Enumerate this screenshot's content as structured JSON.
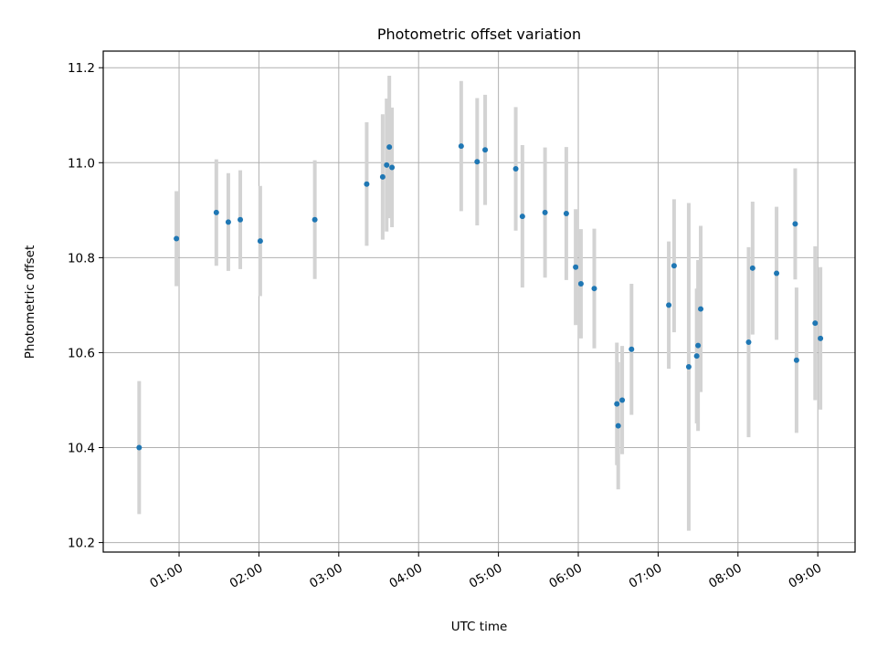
{
  "chart_data": {
    "type": "scatter",
    "title": "Photometric offset variation",
    "xlabel": "UTC time",
    "ylabel": "Photometric offset",
    "x_unit": "UTC time of day",
    "xlim": [
      "00:03",
      "09:28"
    ],
    "ylim": [
      10.18,
      11.235
    ],
    "grid": true,
    "error_bar_color": "#d3d3d3",
    "point_color": "#1f77b4",
    "x_ticks": [
      "01:00",
      "02:00",
      "03:00",
      "04:00",
      "05:00",
      "06:00",
      "07:00",
      "08:00",
      "09:00"
    ],
    "y_ticks": [
      "10.2",
      "10.4",
      "10.6",
      "10.8",
      "11.0",
      "11.2"
    ],
    "points": [
      {
        "x": "00:30",
        "y": 10.4,
        "yerr": 0.14
      },
      {
        "x": "00:58",
        "y": 10.84,
        "yerr": 0.1
      },
      {
        "x": "01:28",
        "y": 10.895,
        "yerr": 0.112
      },
      {
        "x": "01:37",
        "y": 10.875,
        "yerr": 0.103
      },
      {
        "x": "01:46",
        "y": 10.88,
        "yerr": 0.104
      },
      {
        "x": "02:01",
        "y": 10.835,
        "yerr": 0.116
      },
      {
        "x": "02:42",
        "y": 10.88,
        "yerr": 0.125
      },
      {
        "x": "03:21",
        "y": 10.955,
        "yerr": 0.13
      },
      {
        "x": "03:33",
        "y": 10.97,
        "yerr": 0.132
      },
      {
        "x": "03:36",
        "y": 10.995,
        "yerr": 0.14
      },
      {
        "x": "03:38",
        "y": 11.033,
        "yerr": 0.15
      },
      {
        "x": "03:40",
        "y": 10.99,
        "yerr": 0.126
      },
      {
        "x": "04:32",
        "y": 11.035,
        "yerr": 0.137
      },
      {
        "x": "04:44",
        "y": 11.002,
        "yerr": 0.134
      },
      {
        "x": "04:50",
        "y": 11.027,
        "yerr": 0.116
      },
      {
        "x": "05:13",
        "y": 10.987,
        "yerr": 0.13
      },
      {
        "x": "05:18",
        "y": 10.887,
        "yerr": 0.15
      },
      {
        "x": "05:35",
        "y": 10.895,
        "yerr": 0.137
      },
      {
        "x": "05:51",
        "y": 10.893,
        "yerr": 0.14
      },
      {
        "x": "05:58",
        "y": 10.78,
        "yerr": 0.122
      },
      {
        "x": "06:02",
        "y": 10.745,
        "yerr": 0.115
      },
      {
        "x": "06:12",
        "y": 10.735,
        "yerr": 0.126
      },
      {
        "x": "06:29",
        "y": 10.492,
        "yerr": 0.129
      },
      {
        "x": "06:30",
        "y": 10.446,
        "yerr": 0.134
      },
      {
        "x": "06:33",
        "y": 10.5,
        "yerr": 0.114
      },
      {
        "x": "06:40",
        "y": 10.607,
        "yerr": 0.138
      },
      {
        "x": "07:08",
        "y": 10.7,
        "yerr": 0.134
      },
      {
        "x": "07:12",
        "y": 10.783,
        "yerr": 0.14
      },
      {
        "x": "07:23",
        "y": 10.57,
        "yerr": 0.345
      },
      {
        "x": "07:29",
        "y": 10.593,
        "yerr": 0.142
      },
      {
        "x": "07:30",
        "y": 10.615,
        "yerr": 0.18
      },
      {
        "x": "07:32",
        "y": 10.692,
        "yerr": 0.175
      },
      {
        "x": "08:08",
        "y": 10.622,
        "yerr": 0.2
      },
      {
        "x": "08:11",
        "y": 10.778,
        "yerr": 0.14
      },
      {
        "x": "08:29",
        "y": 10.767,
        "yerr": 0.14
      },
      {
        "x": "08:43",
        "y": 10.871,
        "yerr": 0.117
      },
      {
        "x": "08:44",
        "y": 10.584,
        "yerr": 0.153
      },
      {
        "x": "08:58",
        "y": 10.662,
        "yerr": 0.162
      },
      {
        "x": "09:02",
        "y": 10.63,
        "yerr": 0.15
      }
    ]
  }
}
